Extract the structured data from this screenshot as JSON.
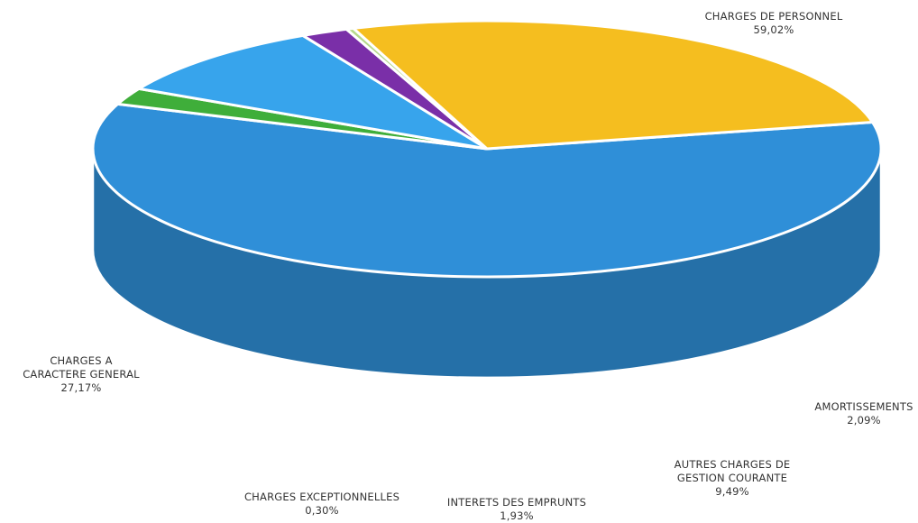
{
  "chart_data": {
    "type": "pie",
    "title": "",
    "slices": [
      {
        "label_lines": [
          "CHARGES DE PERSONNEL"
        ],
        "value": 59.02,
        "value_text": "59,02%",
        "color": "#2F8FD8"
      },
      {
        "label_lines": [
          "AMORTISSEMENTS"
        ],
        "value": 2.09,
        "value_text": "2,09%",
        "color": "#3FAE3A"
      },
      {
        "label_lines": [
          "AUTRES CHARGES DE",
          "GESTION COURANTE"
        ],
        "value": 9.49,
        "value_text": "9,49%",
        "color": "#37A4EC"
      },
      {
        "label_lines": [
          "INTERETS DES EMPRUNTS"
        ],
        "value": 1.93,
        "value_text": "1,93%",
        "color": "#7A2FA8"
      },
      {
        "label_lines": [
          "CHARGES EXCEPTIONNELLES"
        ],
        "value": 0.3,
        "value_text": "0,30%",
        "color": "#B6D98A"
      },
      {
        "label_lines": [
          "CHARGES A",
          "CARACTERE GENERAL"
        ],
        "value": 27.17,
        "value_text": "27,17%",
        "color": "#F5BE1F"
      }
    ]
  }
}
